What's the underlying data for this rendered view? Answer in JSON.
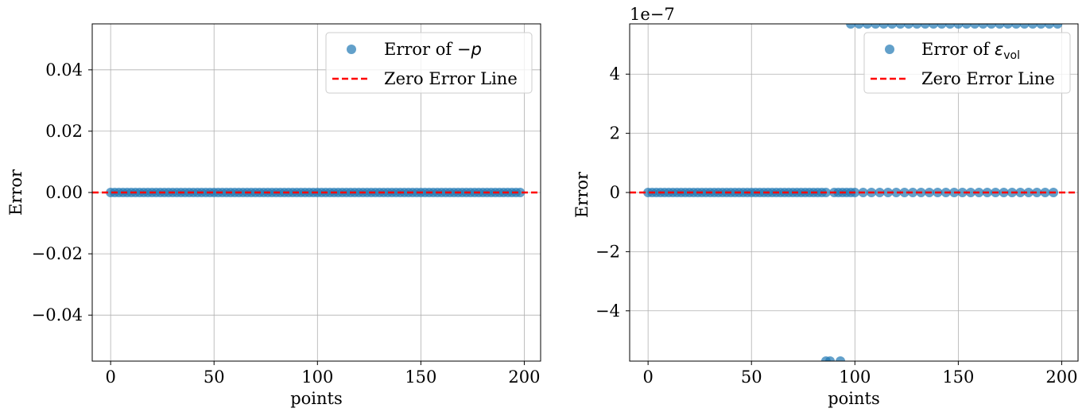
{
  "chart_data": [
    {
      "type": "scatter",
      "xlabel": "points",
      "ylabel": "Error",
      "xlim": [
        -8.9,
        207.9
      ],
      "ylim": [
        -0.055,
        0.055
      ],
      "x_ticks": [
        0,
        50,
        100,
        150,
        200
      ],
      "x_tick_labels": [
        "0",
        "50",
        "100",
        "150",
        "200"
      ],
      "y_ticks": [
        -0.04,
        -0.02,
        0.0,
        0.02,
        0.04
      ],
      "y_tick_labels": [
        "−0.04",
        "−0.02",
        "0.00",
        "0.02",
        "0.04"
      ],
      "grid": true,
      "legend_position": "top-right",
      "series": [
        {
          "name_prefix": "Error of ",
          "name_math": "−p",
          "kind": "scatter",
          "color": "#1f77b4",
          "points": {
            "x_start": 0,
            "x_end": 198,
            "x_step": 2,
            "y": 0.0
          }
        },
        {
          "name": "Zero Error Line",
          "kind": "hline",
          "color": "#ff0000",
          "y": 0.0
        }
      ]
    },
    {
      "type": "scatter",
      "xlabel": "points",
      "ylabel": "Error",
      "offset_text": "1e−7",
      "xlim": [
        -8.9,
        207.9
      ],
      "ylim": [
        -5.7,
        5.7
      ],
      "x_ticks": [
        0,
        50,
        100,
        150,
        200
      ],
      "x_tick_labels": [
        "0",
        "50",
        "100",
        "150",
        "200"
      ],
      "y_ticks": [
        -4,
        -2,
        0,
        2,
        4
      ],
      "y_tick_labels": [
        "−4",
        "−2",
        "0",
        "2",
        "4"
      ],
      "grid": true,
      "legend_position": "top-right",
      "series": [
        {
          "name_prefix": "Error of ",
          "name_math": "ε",
          "name_sub": "vol",
          "kind": "scatter",
          "color": "#1f77b4",
          "points": {
            "zero_x": [
              0,
              2,
              4,
              6,
              8,
              10,
              12,
              14,
              16,
              18,
              20,
              22,
              24,
              26,
              28,
              30,
              32,
              34,
              36,
              38,
              40,
              42,
              44,
              46,
              48,
              50,
              52,
              54,
              56,
              58,
              60,
              62,
              64,
              66,
              68,
              70,
              72,
              74,
              76,
              78,
              80,
              82,
              84,
              86,
              90,
              92,
              94,
              96,
              98,
              100,
              104,
              108,
              112,
              116,
              120,
              124,
              128,
              132,
              136,
              140,
              144,
              148,
              152,
              156,
              160,
              164,
              168,
              172,
              176,
              180,
              184,
              188,
              192,
              196
            ],
            "top_x": [
              98,
              102,
              106,
              110,
              114,
              118,
              122,
              126,
              130,
              134,
              138,
              142,
              146,
              150,
              154,
              158,
              162,
              166,
              170,
              174,
              178,
              182,
              186,
              190,
              194,
              198
            ],
            "bottom_x": [
              86,
              88,
              93
            ],
            "top_y": 5.7,
            "bottom_y": -5.7
          }
        },
        {
          "name": "Zero Error Line",
          "kind": "hline",
          "color": "#ff0000",
          "y": 0.0
        }
      ]
    }
  ]
}
